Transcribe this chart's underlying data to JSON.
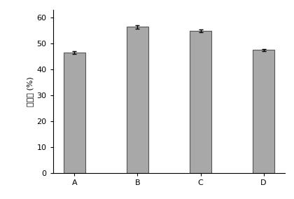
{
  "categories": [
    "A",
    "B",
    "C",
    "D"
  ],
  "values": [
    46.5,
    56.5,
    55.0,
    47.5
  ],
  "errors": [
    0.5,
    0.7,
    0.6,
    0.3
  ],
  "bar_color": "#a8a8a8",
  "bar_edgecolor": "#555555",
  "ylabel": "清除率 (%)",
  "ylim": [
    0,
    63
  ],
  "yticks": [
    0,
    10,
    20,
    30,
    40,
    50,
    60
  ],
  "bar_width": 0.35,
  "figsize": [
    4.2,
    2.84
  ],
  "dpi": 100
}
